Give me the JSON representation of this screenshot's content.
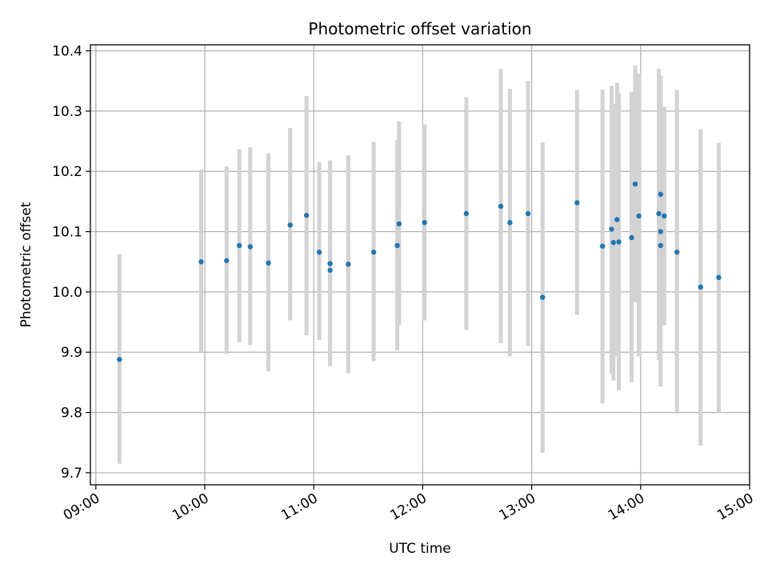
{
  "chart_data": {
    "type": "scatter",
    "title": "Photometric offset variation",
    "xlabel": "UTC time",
    "ylabel": "Photometric offset",
    "x_tick_labels": [
      "09:00",
      "10:00",
      "11:00",
      "12:00",
      "13:00",
      "14:00",
      "15:00"
    ],
    "x_ticks": [
      "09:00",
      "10:00",
      "11:00",
      "12:00",
      "13:00",
      "14:00",
      "15:00"
    ],
    "y_ticks": [
      9.7,
      9.8,
      9.9,
      10.0,
      10.1,
      10.2,
      10.3,
      10.4
    ],
    "y_tick_labels": [
      "9.7",
      "9.8",
      "9.9",
      "10.0",
      "10.1",
      "10.2",
      "10.3",
      "10.4"
    ],
    "xlim": [
      "08:57",
      "15:00"
    ],
    "ylim": [
      9.68,
      10.41
    ],
    "grid": true,
    "colors": {
      "points": "#1f77b4",
      "errorbars": "#d3d3d3",
      "grid": "#b0b0b0"
    },
    "series": [
      {
        "values": [
          {
            "x": "09:13",
            "y": 9.888,
            "err_low": 9.715,
            "err_high": 10.063
          },
          {
            "x": "09:58",
            "y": 10.05,
            "err_low": 9.9,
            "err_high": 10.203
          },
          {
            "x": "10:12",
            "y": 10.052,
            "err_low": 9.897,
            "err_high": 10.208
          },
          {
            "x": "10:19",
            "y": 10.077,
            "err_low": 9.917,
            "err_high": 10.237
          },
          {
            "x": "10:25",
            "y": 10.075,
            "err_low": 9.912,
            "err_high": 10.24
          },
          {
            "x": "10:35",
            "y": 10.048,
            "err_low": 9.868,
            "err_high": 10.23
          },
          {
            "x": "10:47",
            "y": 10.111,
            "err_low": 9.953,
            "err_high": 10.272
          },
          {
            "x": "10:56",
            "y": 10.127,
            "err_low": 9.928,
            "err_high": 10.325
          },
          {
            "x": "11:03",
            "y": 10.066,
            "err_low": 9.92,
            "err_high": 10.215
          },
          {
            "x": "11:09",
            "y": 10.047,
            "err_low": 9.877,
            "err_high": 10.218
          },
          {
            "x": "11:09",
            "y": 10.036,
            "err_low": 9.877,
            "err_high": 10.218
          },
          {
            "x": "11:19",
            "y": 10.046,
            "err_low": 9.865,
            "err_high": 10.227
          },
          {
            "x": "11:33",
            "y": 10.066,
            "err_low": 9.885,
            "err_high": 10.249
          },
          {
            "x": "11:46",
            "y": 10.077,
            "err_low": 9.903,
            "err_high": 10.252
          },
          {
            "x": "11:47",
            "y": 10.113,
            "err_low": 9.945,
            "err_high": 10.283
          },
          {
            "x": "12:01",
            "y": 10.115,
            "err_low": 9.953,
            "err_high": 10.278
          },
          {
            "x": "12:24",
            "y": 10.13,
            "err_low": 9.937,
            "err_high": 10.323
          },
          {
            "x": "12:43",
            "y": 10.142,
            "err_low": 9.915,
            "err_high": 10.37
          },
          {
            "x": "12:48",
            "y": 10.115,
            "err_low": 9.893,
            "err_high": 10.337
          },
          {
            "x": "12:58",
            "y": 10.13,
            "err_low": 9.91,
            "err_high": 10.35
          },
          {
            "x": "13:06",
            "y": 9.991,
            "err_low": 9.733,
            "err_high": 10.248
          },
          {
            "x": "13:25",
            "y": 10.148,
            "err_low": 9.962,
            "err_high": 10.335
          },
          {
            "x": "13:39",
            "y": 10.076,
            "err_low": 9.815,
            "err_high": 10.336
          },
          {
            "x": "13:44",
            "y": 10.104,
            "err_low": 9.865,
            "err_high": 10.342
          },
          {
            "x": "13:45",
            "y": 10.082,
            "err_low": 9.853,
            "err_high": 10.312
          },
          {
            "x": "13:47",
            "y": 10.12,
            "err_low": 9.893,
            "err_high": 10.347
          },
          {
            "x": "13:48",
            "y": 10.083,
            "err_low": 9.837,
            "err_high": 10.33
          },
          {
            "x": "13:55",
            "y": 10.09,
            "err_low": 9.85,
            "err_high": 10.332
          },
          {
            "x": "13:57",
            "y": 10.179,
            "err_low": 9.983,
            "err_high": 10.376
          },
          {
            "x": "13:59",
            "y": 10.126,
            "err_low": 9.893,
            "err_high": 10.362
          },
          {
            "x": "14:10",
            "y": 10.13,
            "err_low": 9.887,
            "err_high": 10.37
          },
          {
            "x": "14:11",
            "y": 10.077,
            "err_low": 9.843,
            "err_high": 10.355
          },
          {
            "x": "14:11",
            "y": 10.1,
            "err_low": 9.865,
            "err_high": 10.358
          },
          {
            "x": "14:11",
            "y": 10.162,
            "err_low": 9.965,
            "err_high": 10.359
          },
          {
            "x": "14:13",
            "y": 10.126,
            "err_low": 9.945,
            "err_high": 10.307
          },
          {
            "x": "14:20",
            "y": 10.066,
            "err_low": 9.798,
            "err_high": 10.335
          },
          {
            "x": "14:33",
            "y": 10.008,
            "err_low": 9.745,
            "err_high": 10.27
          },
          {
            "x": "14:43",
            "y": 10.024,
            "err_low": 9.8,
            "err_high": 10.247
          }
        ]
      }
    ]
  }
}
